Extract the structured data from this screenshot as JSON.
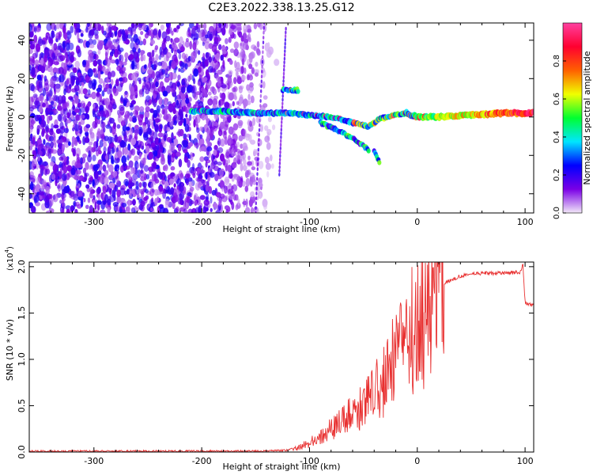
{
  "title": "C2E3.2022.338.13.25.G12",
  "chart_data": [
    {
      "type": "heatmap",
      "xlabel": "Height of straight line (km)",
      "ylabel": "Frequency (Hz)",
      "xlim": [
        -360,
        108
      ],
      "ylim": [
        -50,
        49
      ],
      "x_ticks": [
        -300,
        -200,
        -100,
        0,
        100
      ],
      "y_ticks": [
        -40,
        -20,
        0,
        20,
        40
      ],
      "colorbar": {
        "label": "Normalized spectral amplitude",
        "range": [
          0,
          1
        ],
        "ticks": [
          0.0,
          0.2,
          0.4,
          0.6,
          0.8
        ],
        "tick_labels": [
          "0.0",
          "0.2",
          "0.4",
          "0.6",
          "0.8"
        ],
        "colormap": [
          "#f2e8f8",
          "#7a00e6",
          "#0000ff",
          "#00e6ff",
          "#00ff30",
          "#f0ff00",
          "#ff6000",
          "#ff0030",
          "#ff40a0"
        ]
      },
      "noise_region_x": [
        -360,
        -150
      ],
      "signal_trace": {
        "x": [
          -210,
          -180,
          -150,
          -120,
          -100,
          -80,
          -60,
          -45,
          -35,
          -20,
          -10,
          0,
          20,
          50,
          80,
          108
        ],
        "y": [
          3,
          3,
          2,
          2,
          1,
          0,
          -3,
          -5,
          -1,
          1,
          2,
          0,
          0,
          1,
          2,
          2
        ]
      },
      "branches": [
        {
          "x": [
            -125,
            -110
          ],
          "y": [
            14,
            14
          ]
        },
        {
          "x": [
            -90,
            -70,
            -55,
            -45
          ],
          "y": [
            -3,
            -8,
            -13,
            -17
          ]
        },
        {
          "x": [
            -40,
            -35
          ],
          "y": [
            -18,
            -24
          ]
        }
      ]
    },
    {
      "type": "line",
      "xlabel": "Height of straight line (km)",
      "ylabel": "SNR (10 * v/v)",
      "y_multiplier": "(x10",
      "y_multiplier_exp": "4",
      "y_multiplier_close": ")",
      "xlim": [
        -360,
        108
      ],
      "ylim": [
        0,
        2.05
      ],
      "x_ticks": [
        -300,
        -200,
        -100,
        0,
        100
      ],
      "y_ticks": [
        0.0,
        0.5,
        1.0,
        1.5,
        2.0
      ],
      "y_tick_labels": [
        "0.0",
        "0.5",
        "1.0",
        "1.5",
        "2.0"
      ],
      "line_color": "#e83030",
      "series": [
        {
          "x": [
            -360,
            -300,
            -200,
            -140,
            -120,
            -110,
            -100,
            -90,
            -80,
            -70,
            -60,
            -50,
            -40,
            -30,
            -25,
            -20,
            -15,
            -10,
            -5,
            0,
            5,
            10,
            15,
            20,
            30,
            40,
            50,
            60,
            80,
            95,
            98,
            100,
            102,
            108
          ],
          "values": [
            0.01,
            0.01,
            0.01,
            0.01,
            0.02,
            0.05,
            0.1,
            0.18,
            0.25,
            0.32,
            0.4,
            0.5,
            0.62,
            0.75,
            0.9,
            1.0,
            1.1,
            1.2,
            1.3,
            1.35,
            1.45,
            1.55,
            1.68,
            1.78,
            1.85,
            1.9,
            1.92,
            1.93,
            1.93,
            1.94,
            2.02,
            1.62,
            1.6,
            1.58
          ]
        }
      ]
    }
  ]
}
